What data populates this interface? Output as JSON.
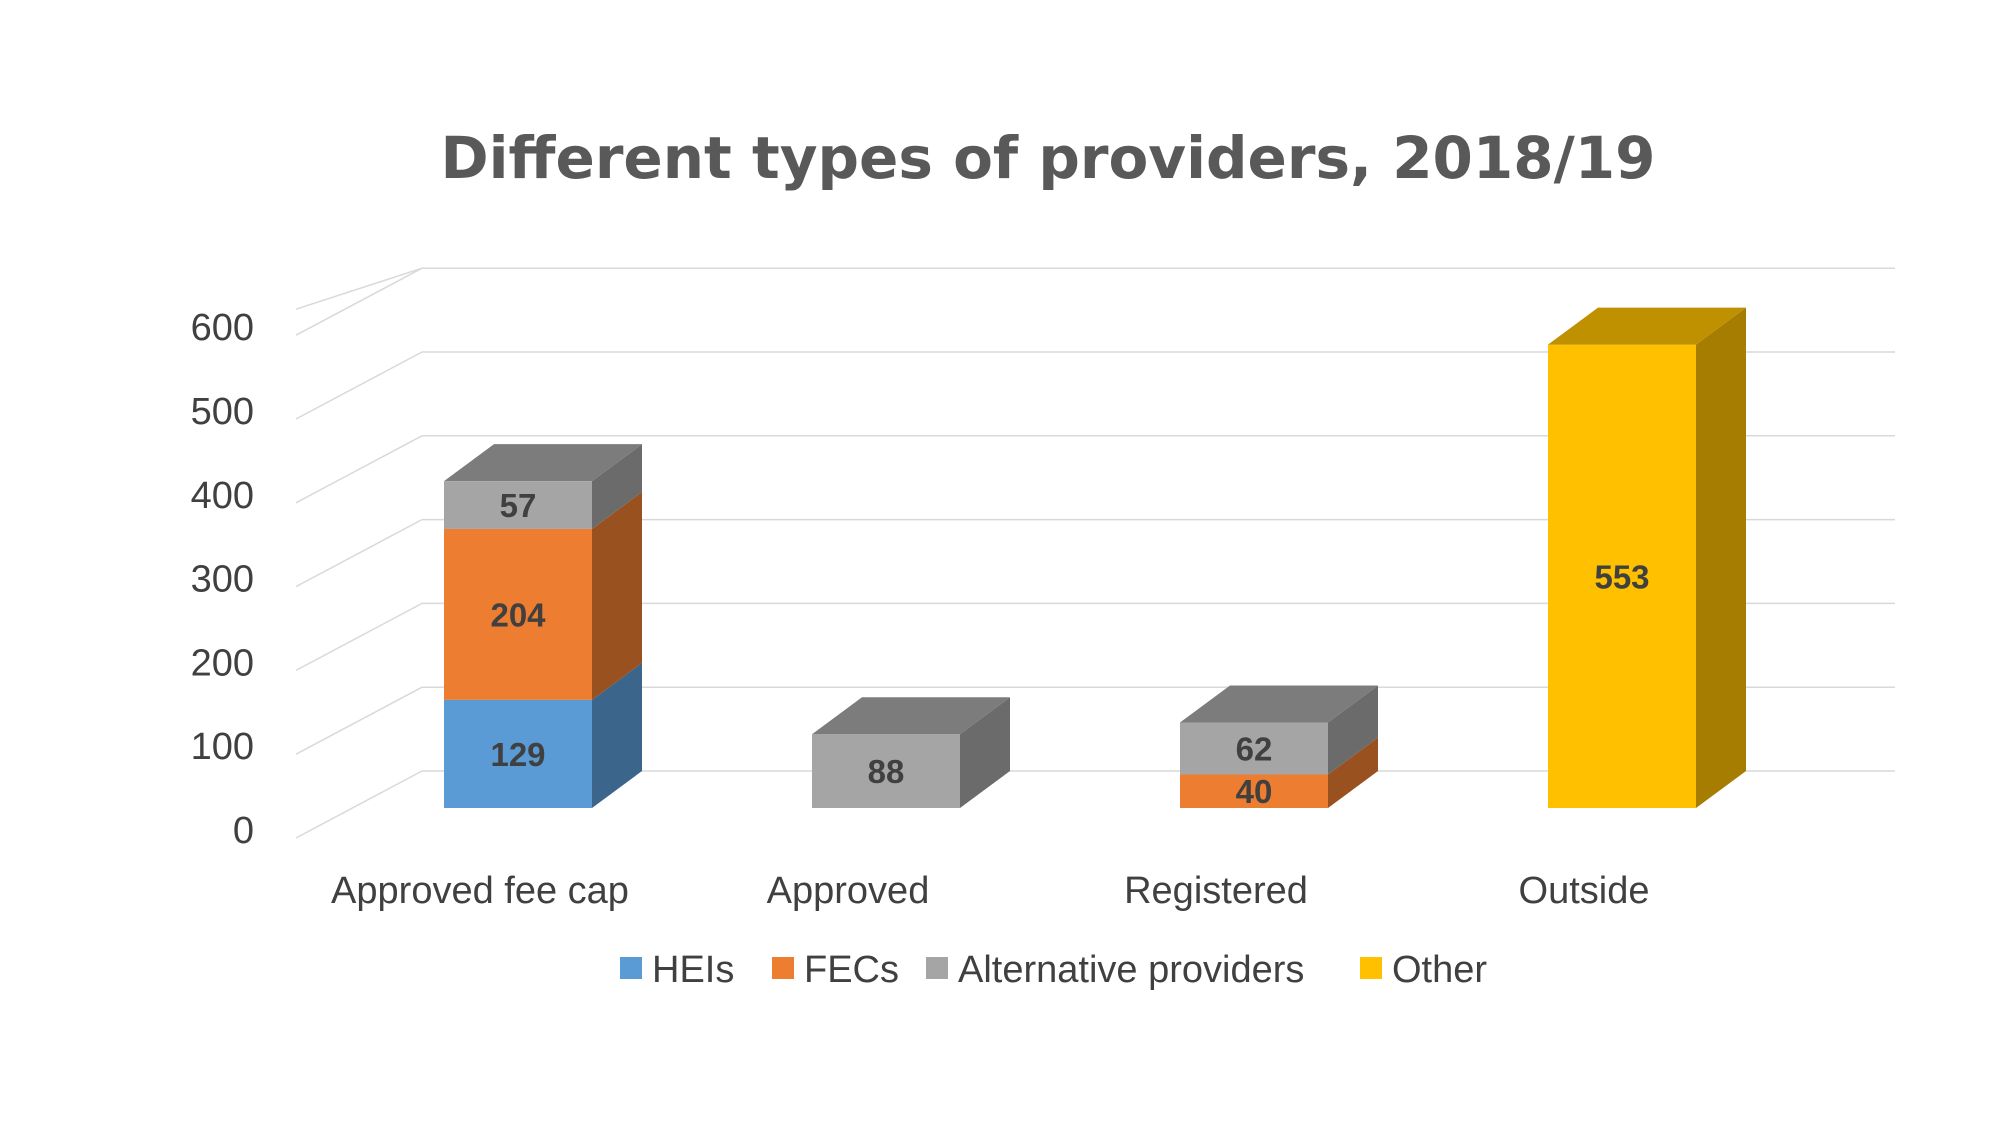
{
  "chart_data": {
    "type": "bar",
    "stacked": true,
    "three_d": true,
    "title": "Different types of providers, 2018/19",
    "xlabel": "",
    "ylabel": "",
    "ylim": [
      0,
      600
    ],
    "yticks": [
      0,
      100,
      200,
      300,
      400,
      500,
      600
    ],
    "ytick_labels": [
      "0",
      "100",
      "200",
      "300",
      "400",
      "500",
      "600"
    ],
    "grid": true,
    "legend_position": "bottom",
    "categories": [
      "Approved fee cap",
      "Approved",
      "Registered",
      "Outside"
    ],
    "series": [
      {
        "name": "HEIs",
        "color": "#5b9bd5",
        "values": [
          129,
          null,
          null,
          null
        ]
      },
      {
        "name": "FECs",
        "color": "#ed7d31",
        "values": [
          204,
          null,
          40,
          null
        ]
      },
      {
        "name": "Alternative providers",
        "color": "#a5a5a5",
        "values": [
          57,
          88,
          62,
          null
        ]
      },
      {
        "name": "Other",
        "color": "#ffc000",
        "values": [
          null,
          null,
          null,
          553
        ]
      }
    ]
  }
}
